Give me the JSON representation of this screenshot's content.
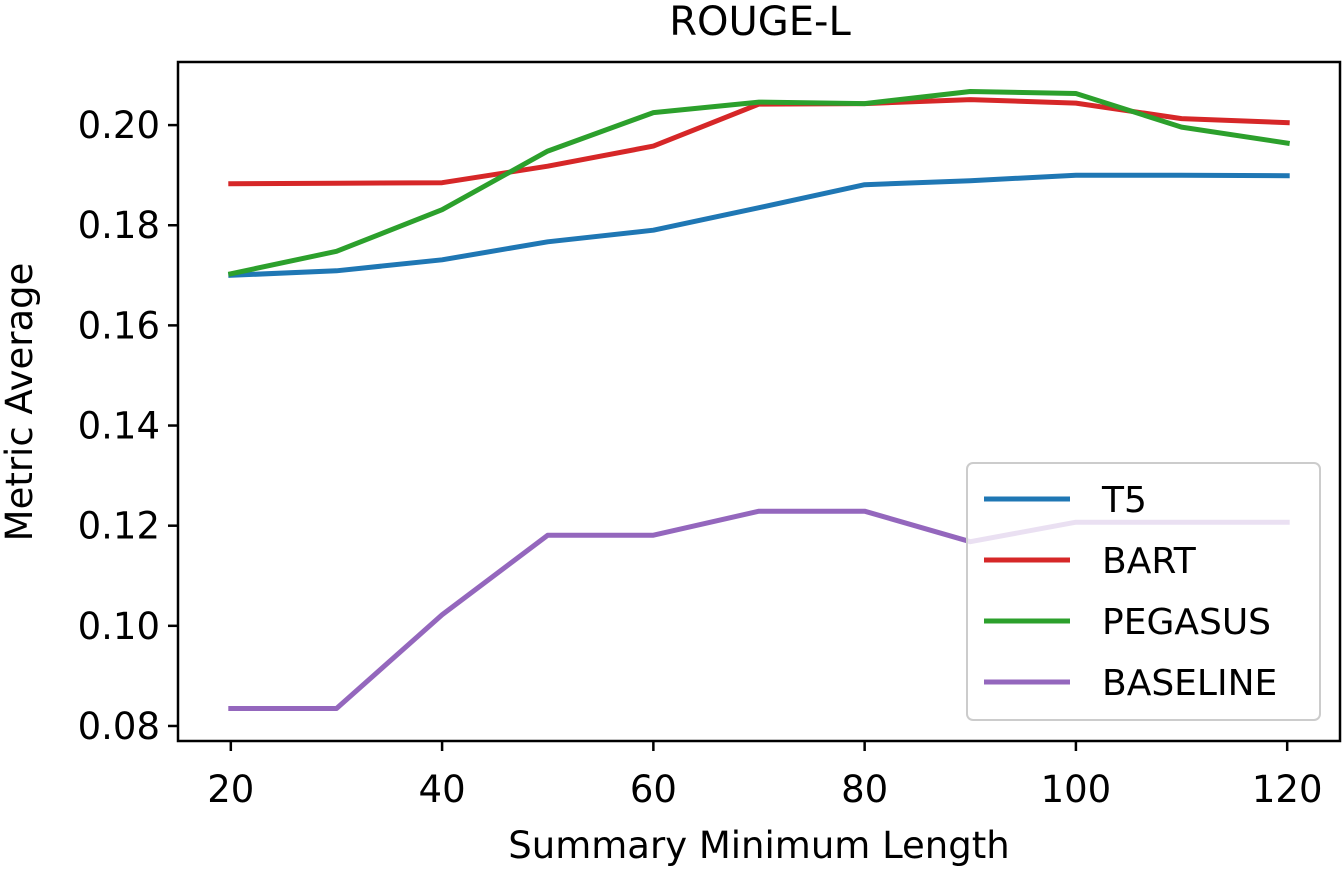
{
  "chart_data": {
    "type": "line",
    "title": "ROUGE-L",
    "xlabel": "Summary Minimum Length",
    "ylabel": "Metric Average",
    "xlim": [
      15,
      125
    ],
    "ylim": [
      0.077,
      0.2126
    ],
    "x_ticks": [
      "20",
      "40",
      "60",
      "80",
      "100",
      "120"
    ],
    "y_ticks": [
      "0.08",
      "0.10",
      "0.12",
      "0.14",
      "0.16",
      "0.18",
      "0.20"
    ],
    "grid": false,
    "legend_position": "lower-right",
    "x": [
      20,
      30,
      40,
      50,
      60,
      70,
      80,
      90,
      100,
      110,
      120
    ],
    "series": [
      {
        "name": "T5",
        "color": "#1f77b4",
        "values": [
          0.17,
          0.1709,
          0.1731,
          0.1767,
          0.179,
          0.1835,
          0.1881,
          0.1889,
          0.19,
          0.19,
          0.1899
        ]
      },
      {
        "name": "BART",
        "color": "#d62728",
        "values": [
          0.1883,
          0.1884,
          0.1885,
          0.1918,
          0.1958,
          0.2042,
          0.2043,
          0.2051,
          0.2044,
          0.2013,
          0.2005
        ]
      },
      {
        "name": "PEGASUS",
        "color": "#2ca02c",
        "values": [
          0.1703,
          0.1748,
          0.1831,
          0.1948,
          0.2025,
          0.2046,
          0.2043,
          0.2067,
          0.2063,
          0.1996,
          0.1964
        ]
      },
      {
        "name": "BASELINE",
        "color": "#9467bd",
        "values": [
          0.0835,
          0.0835,
          0.1022,
          0.1181,
          0.1181,
          0.1229,
          0.1229,
          0.1168,
          0.1207,
          0.1207,
          0.1207
        ]
      }
    ]
  }
}
